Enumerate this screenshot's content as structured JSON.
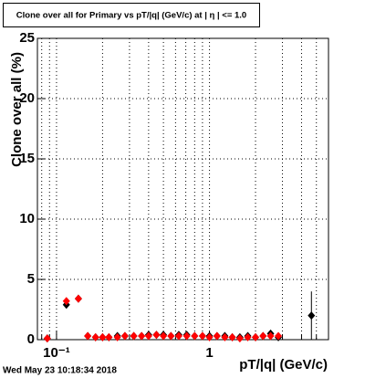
{
  "chart_data": {
    "type": "scatter",
    "title": "Clone  over all for Primary vs pT/|q| (GeV/c) at |  η | <= 1.0",
    "x_label": "pT/|q| (GeV/c)",
    "y_label": "Clone  over all (%)",
    "footer": "Wed May 23 10:18:34 2018",
    "log_x": true,
    "grid": true,
    "xlim": [
      0.075,
      6
    ],
    "ylim": [
      0,
      25
    ],
    "yticks": [
      0,
      5,
      10,
      15,
      20,
      25
    ],
    "xticks": [
      {
        "value": 0.1,
        "label": "10⁻¹"
      },
      1
    ],
    "xminor_ticks": [
      0.08,
      0.09,
      0.2,
      0.3,
      0.4,
      0.5,
      0.6,
      0.7,
      0.8,
      0.9,
      2,
      3,
      4,
      5
    ],
    "x": [
      0.087,
      0.116,
      0.139,
      0.16,
      0.18,
      0.2,
      0.22,
      0.25,
      0.28,
      0.32,
      0.36,
      0.4,
      0.45,
      0.5,
      0.56,
      0.63,
      0.71,
      0.8,
      0.9,
      1.0,
      1.12,
      1.26,
      1.41,
      1.58,
      1.78,
      2.0,
      2.24,
      2.51,
      2.82,
      4.64
    ],
    "series": [
      {
        "color": "#000000",
        "values": [
          0.1,
          2.9,
          3.4,
          0.3,
          0.2,
          0.2,
          0.2,
          0.3,
          0.3,
          0.3,
          0.3,
          0.4,
          0.4,
          0.4,
          0.3,
          0.4,
          0.4,
          0.3,
          0.3,
          0.3,
          0.3,
          0.3,
          0.2,
          0.2,
          0.3,
          0.2,
          0.3,
          0.5,
          0.2,
          2.0
        ],
        "errors": [
          0.2,
          0.3,
          0.3,
          0.1,
          0.1,
          0.1,
          0.1,
          0.1,
          0.1,
          0.1,
          0.1,
          0.1,
          0.1,
          0.1,
          0.1,
          0.1,
          0.1,
          0.1,
          0.1,
          0.1,
          0.1,
          0.1,
          0.1,
          0.1,
          0.1,
          0.1,
          0.2,
          0.3,
          0.2,
          2.0
        ]
      },
      {
        "color": "#ff0000",
        "values": [
          0.1,
          3.2,
          3.4,
          0.3,
          0.2,
          0.2,
          0.2,
          0.2,
          0.3,
          0.3,
          0.3,
          0.3,
          0.4,
          0.3,
          0.3,
          0.3,
          0.3,
          0.3,
          0.3,
          0.2,
          0.3,
          0.2,
          0.2,
          0.1,
          0.2,
          0.2,
          0.3,
          0.3,
          0.3,
          null
        ]
      }
    ]
  }
}
